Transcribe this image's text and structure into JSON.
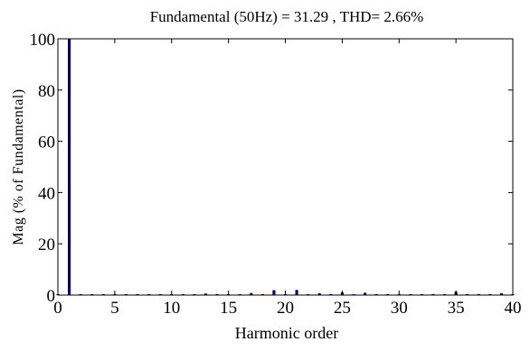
{
  "chart_data": {
    "type": "bar",
    "title": "Fundamental (50Hz) = 31.29 , THD= 2.66%",
    "xlabel": "Harmonic order",
    "ylabel": "Mag (% of Fundamental)",
    "xlim": [
      0,
      40
    ],
    "ylim": [
      0,
      100
    ],
    "xticks": [
      "0",
      "5",
      "10",
      "15",
      "20",
      "25",
      "30",
      "35",
      "40"
    ],
    "yticks": [
      "0",
      "20",
      "40",
      "60",
      "80",
      "100"
    ],
    "grid": false,
    "series_color": "#00008B",
    "x": [
      0,
      1,
      2,
      3,
      4,
      5,
      6,
      7,
      8,
      9,
      10,
      11,
      12,
      13,
      14,
      15,
      16,
      17,
      18,
      19,
      20,
      21,
      22,
      23,
      24,
      25,
      26,
      27,
      28,
      29,
      30,
      31,
      32,
      33,
      34,
      35,
      36,
      37,
      38,
      39,
      40
    ],
    "values": [
      0,
      100,
      0.1,
      0.2,
      0.1,
      0.3,
      0.1,
      0.3,
      0.1,
      0.2,
      0.1,
      0.3,
      0.1,
      0.6,
      0.1,
      0.3,
      0.1,
      0.8,
      0.1,
      1.9,
      0.1,
      2.0,
      0.1,
      0.7,
      0.1,
      1.0,
      0.1,
      0.9,
      0.1,
      0.3,
      0.1,
      0.3,
      0.1,
      0.4,
      0.1,
      1.3,
      0.1,
      0.4,
      0.1,
      0.7,
      0.1
    ]
  }
}
